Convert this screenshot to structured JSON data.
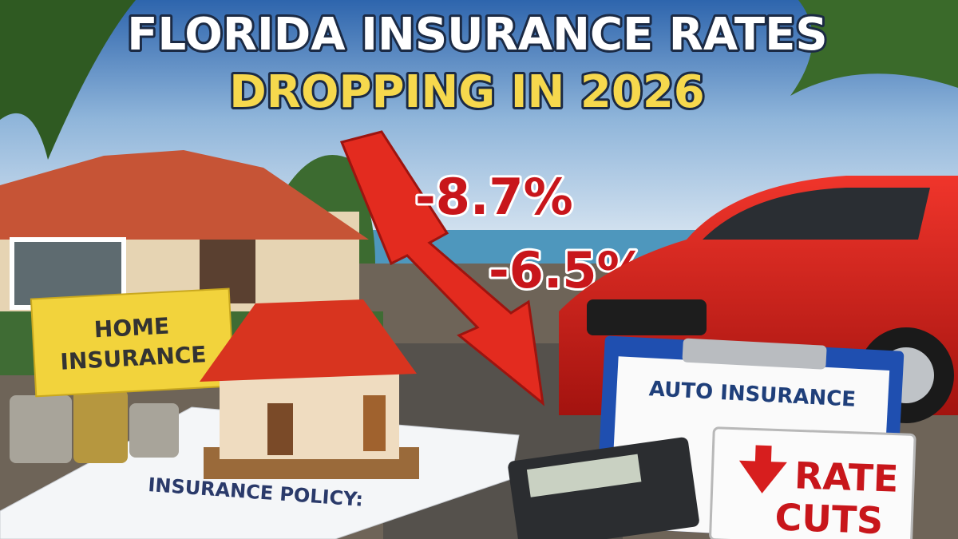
{
  "header": {
    "line1": "FLORIDA INSURANCE RATES",
    "line2": "DROPPING IN 2026"
  },
  "callouts": [
    "-8.7%",
    "-6.5%"
  ],
  "signs": {
    "home": [
      "HOME",
      "INSURANCE"
    ],
    "auto": "AUTO INSURANCE",
    "rate_cuts": [
      "RATE",
      "CUTS"
    ]
  },
  "documents": {
    "policy": "INSURANCE POLICY:"
  }
}
